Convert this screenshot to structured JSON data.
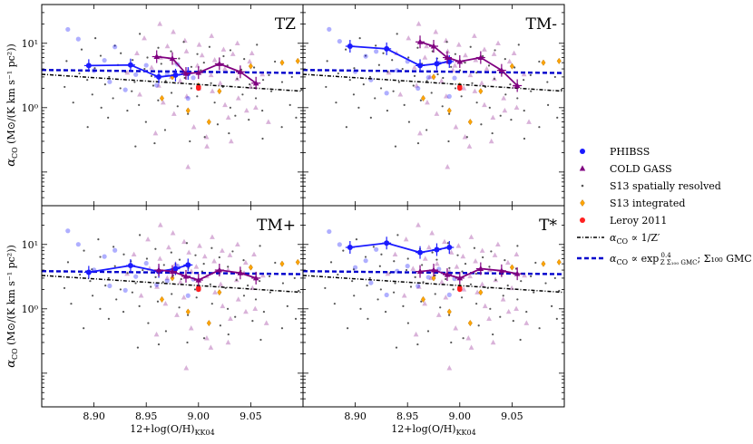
{
  "chart_data": {
    "type": "scatter",
    "layout": "2x2 panels, shared x and y axes",
    "x_axis": {
      "label": "12+log(O/H)",
      "label_subscript": "KK04",
      "range": [
        8.85,
        9.1
      ],
      "ticks": [
        8.9,
        8.95,
        9.0,
        9.05
      ],
      "tick_labels": [
        "8.90",
        "8.95",
        "9.00",
        "9.05"
      ]
    },
    "y_axis": {
      "label_prefix": "α",
      "label_subscript": "CO",
      "label_units": "(M⊙/(K km s⁻¹ pc²))",
      "scale": "log",
      "range": [
        0.03,
        40
      ],
      "ticks": [
        1,
        10
      ],
      "tick_labels": [
        "10⁰",
        "10¹"
      ]
    },
    "legend": {
      "placement": "right of panels",
      "entries": [
        {
          "id": "phibss",
          "label": "PHIBSS",
          "marker": "circle",
          "color": "#1a1aff"
        },
        {
          "id": "coldgass",
          "label": "COLD GASS",
          "marker": "triangle",
          "color": "#800080"
        },
        {
          "id": "s13res",
          "label": "S13 spatially resolved",
          "marker": "small-dot",
          "color": "#555555"
        },
        {
          "id": "s13int",
          "label": "S13 integrated",
          "marker": "diamond",
          "color": "#ffa500"
        },
        {
          "id": "leroy",
          "label": "Leroy 2011",
          "marker": "circle",
          "color": "#ff2020"
        },
        {
          "id": "zprime",
          "label_prefix": "α",
          "label_sub": "CO",
          "label_rest": " ∝ 1/Z′",
          "line": "dash-dot",
          "color": "#000000"
        },
        {
          "id": "expfit",
          "label_prefix": "α",
          "label_sub": "CO",
          "label_rest": " ∝ exp",
          "label_frac_top": "0.4",
          "label_frac_bottom": "Z Σ₁₀₀ GMC",
          "label_tail": "; Σ₁₀₀ GMC = 1",
          "line": "dashed",
          "color": "#0000cc"
        }
      ]
    },
    "reference_lines": {
      "zprime": {
        "x": [
          8.85,
          9.1
        ],
        "y": [
          3.3,
          1.8
        ]
      },
      "expfit": {
        "x": [
          8.85,
          9.1
        ],
        "y": [
          3.85,
          3.45
        ]
      }
    },
    "background_samples": {
      "s13_resolved": [
        [
          8.87,
          2.1
        ],
        [
          8.875,
          5.3
        ],
        [
          8.88,
          1.2
        ],
        [
          8.885,
          3.4
        ],
        [
          8.89,
          8.0
        ],
        [
          8.892,
          0.5
        ],
        [
          8.895,
          2.7
        ],
        [
          8.898,
          1.6
        ],
        [
          8.9,
          4.1
        ],
        [
          8.903,
          12.0
        ],
        [
          8.905,
          1.0
        ],
        [
          8.908,
          6.4
        ],
        [
          8.91,
          2.3
        ],
        [
          8.913,
          0.7
        ],
        [
          8.916,
          3.0
        ],
        [
          8.918,
          9.2
        ],
        [
          8.92,
          1.4
        ],
        [
          8.922,
          4.6
        ],
        [
          8.925,
          2.0
        ],
        [
          8.927,
          7.0
        ],
        [
          8.93,
          0.9
        ],
        [
          8.932,
          3.6
        ],
        [
          8.935,
          1.8
        ],
        [
          8.937,
          5.5
        ],
        [
          8.94,
          2.5
        ],
        [
          8.942,
          14.0
        ],
        [
          8.945,
          1.1
        ],
        [
          8.947,
          4.0
        ],
        [
          8.95,
          0.6
        ],
        [
          8.952,
          6.0
        ],
        [
          8.955,
          2.2
        ],
        [
          8.957,
          3.1
        ],
        [
          8.96,
          8.5
        ],
        [
          8.962,
          1.3
        ],
        [
          8.965,
          4.8
        ],
        [
          8.967,
          2.6
        ],
        [
          8.97,
          0.45
        ],
        [
          8.972,
          7.5
        ],
        [
          8.975,
          1.7
        ],
        [
          8.977,
          3.3
        ],
        [
          8.98,
          5.8
        ],
        [
          8.982,
          1.05
        ],
        [
          8.985,
          2.9
        ],
        [
          8.987,
          10.5
        ],
        [
          8.99,
          0.8
        ],
        [
          8.992,
          4.3
        ],
        [
          8.995,
          2.0
        ],
        [
          8.997,
          6.8
        ],
        [
          9.0,
          1.5
        ],
        [
          9.002,
          3.8
        ],
        [
          9.005,
          0.35
        ],
        [
          9.007,
          5.0
        ],
        [
          9.01,
          2.4
        ],
        [
          9.012,
          8.8
        ],
        [
          9.015,
          1.2
        ],
        [
          9.017,
          3.5
        ],
        [
          9.02,
          0.55
        ],
        [
          9.022,
          6.3
        ],
        [
          9.025,
          2.1
        ],
        [
          9.027,
          4.5
        ],
        [
          9.03,
          1.0
        ],
        [
          9.032,
          7.8
        ],
        [
          9.035,
          2.8
        ],
        [
          9.037,
          0.75
        ],
        [
          9.04,
          3.9
        ],
        [
          9.042,
          1.6
        ],
        [
          9.045,
          5.7
        ],
        [
          9.047,
          2.3
        ],
        [
          9.05,
          0.65
        ],
        [
          9.052,
          4.2
        ],
        [
          9.055,
          1.4
        ],
        [
          9.057,
          9.5
        ],
        [
          9.06,
          2.7
        ],
        [
          9.063,
          0.9
        ],
        [
          9.066,
          3.2
        ],
        [
          9.07,
          1.8
        ],
        [
          9.074,
          5.2
        ],
        [
          9.078,
          0.5
        ],
        [
          9.082,
          2.5
        ],
        [
          9.086,
          1.1
        ],
        [
          9.09,
          3.0
        ],
        [
          9.094,
          0.7
        ],
        [
          9.097,
          1.9
        ],
        [
          8.96,
          0.28
        ],
        [
          8.99,
          0.3
        ],
        [
          9.03,
          0.4
        ],
        [
          8.94,
          0.25
        ],
        [
          9.06,
          0.33
        ]
      ],
      "coldgass": [
        [
          8.93,
          3.5
        ],
        [
          8.94,
          7.0
        ],
        [
          8.945,
          1.6
        ],
        [
          8.95,
          12.0
        ],
        [
          8.955,
          4.2
        ],
        [
          8.96,
          2.2
        ],
        [
          8.962,
          20.0
        ],
        [
          8.965,
          6.0
        ],
        [
          8.968,
          1.2
        ],
        [
          8.97,
          9.0
        ],
        [
          8.972,
          3.0
        ],
        [
          8.975,
          15.0
        ],
        [
          8.978,
          0.8
        ],
        [
          8.98,
          5.0
        ],
        [
          8.982,
          2.6
        ],
        [
          8.985,
          11.0
        ],
        [
          8.988,
          1.5
        ],
        [
          8.99,
          7.5
        ],
        [
          8.992,
          3.8
        ],
        [
          8.995,
          0.5
        ],
        [
          8.997,
          4.5
        ],
        [
          9.0,
          9.5
        ],
        [
          9.002,
          2.0
        ],
        [
          9.005,
          6.5
        ],
        [
          9.007,
          0.35
        ],
        [
          9.01,
          3.2
        ],
        [
          9.012,
          13.0
        ],
        [
          9.015,
          1.8
        ],
        [
          9.017,
          5.5
        ],
        [
          9.02,
          2.4
        ],
        [
          9.022,
          8.0
        ],
        [
          9.025,
          1.1
        ],
        [
          9.027,
          4.0
        ],
        [
          9.03,
          0.7
        ],
        [
          9.032,
          6.8
        ],
        [
          9.035,
          2.8
        ],
        [
          9.037,
          10.0
        ],
        [
          9.04,
          1.4
        ],
        [
          9.042,
          3.6
        ],
        [
          9.045,
          0.9
        ],
        [
          9.047,
          5.2
        ],
        [
          9.05,
          2.1
        ],
        [
          9.053,
          7.0
        ],
        [
          9.056,
          1.0
        ],
        [
          9.06,
          3.3
        ],
        [
          9.065,
          0.6
        ],
        [
          8.99,
          0.12
        ],
        [
          9.01,
          0.25
        ],
        [
          8.96,
          0.4
        ],
        [
          9.03,
          0.3
        ]
      ],
      "s13_integrated": [
        [
          8.965,
          1.4
        ],
        [
          8.975,
          3.0
        ],
        [
          8.99,
          0.9
        ],
        [
          9.0,
          2.2
        ],
        [
          9.02,
          1.8
        ],
        [
          9.04,
          3.6
        ],
        [
          9.05,
          4.4
        ],
        [
          9.08,
          5.0
        ],
        [
          9.095,
          5.3
        ],
        [
          9.01,
          0.6
        ]
      ],
      "leroy": [
        [
          9.0,
          2.1
        ],
        [
          9.0,
          2.0
        ]
      ],
      "phibss_scatter": [
        [
          8.875,
          15.0
        ],
        [
          8.885,
          11.0
        ],
        [
          8.9,
          4.0
        ],
        [
          8.91,
          6.0
        ],
        [
          8.915,
          2.5
        ],
        [
          8.92,
          8.0
        ],
        [
          8.93,
          1.8
        ],
        [
          8.94,
          3.5
        ],
        [
          8.95,
          5.0
        ],
        [
          8.96,
          2.2
        ],
        [
          8.97,
          3.0
        ],
        [
          8.98,
          4.5
        ],
        [
          8.99,
          1.5
        ],
        [
          8.995,
          3.2
        ]
      ]
    },
    "panels": [
      {
        "name": "TZ",
        "phibss_line": {
          "x": [
            8.895,
            8.935,
            8.962,
            8.978,
            8.99
          ],
          "y": [
            4.5,
            4.6,
            3.0,
            3.2,
            3.4
          ]
        },
        "coldgass_line": {
          "x": [
            8.96,
            8.975,
            8.988,
            9.0,
            9.02,
            9.04,
            9.055
          ],
          "y": [
            6.2,
            5.8,
            3.4,
            3.5,
            4.8,
            3.6,
            2.4
          ]
        }
      },
      {
        "name": "TM-",
        "phibss_line": {
          "x": [
            8.895,
            8.93,
            8.962,
            8.978,
            8.99
          ],
          "y": [
            9.0,
            8.2,
            4.5,
            4.8,
            5.2
          ]
        },
        "coldgass_line": {
          "x": [
            8.962,
            8.975,
            8.988,
            9.0,
            9.02,
            9.04,
            9.055
          ],
          "y": [
            10.5,
            9.0,
            6.0,
            5.2,
            6.0,
            3.8,
            2.2
          ]
        }
      },
      {
        "name": "TM+",
        "phibss_line": {
          "x": [
            8.895,
            8.935,
            8.962,
            8.978,
            8.99
          ],
          "y": [
            3.7,
            4.7,
            3.8,
            4.2,
            4.8
          ]
        },
        "coldgass_line": {
          "x": [
            8.962,
            8.975,
            8.988,
            9.0,
            9.02,
            9.04,
            9.055
          ],
          "y": [
            4.0,
            3.8,
            3.2,
            2.8,
            4.0,
            3.6,
            3.0
          ]
        }
      },
      {
        "name": "T*",
        "phibss_line": {
          "x": [
            8.895,
            8.93,
            8.962,
            8.978,
            8.99
          ],
          "y": [
            9.0,
            10.5,
            7.5,
            8.3,
            9.0
          ]
        },
        "coldgass_line": {
          "x": [
            8.962,
            8.975,
            8.988,
            9.0,
            9.02,
            9.04,
            9.055
          ],
          "y": [
            3.8,
            4.0,
            3.4,
            3.0,
            4.2,
            3.9,
            3.5
          ]
        }
      }
    ]
  }
}
